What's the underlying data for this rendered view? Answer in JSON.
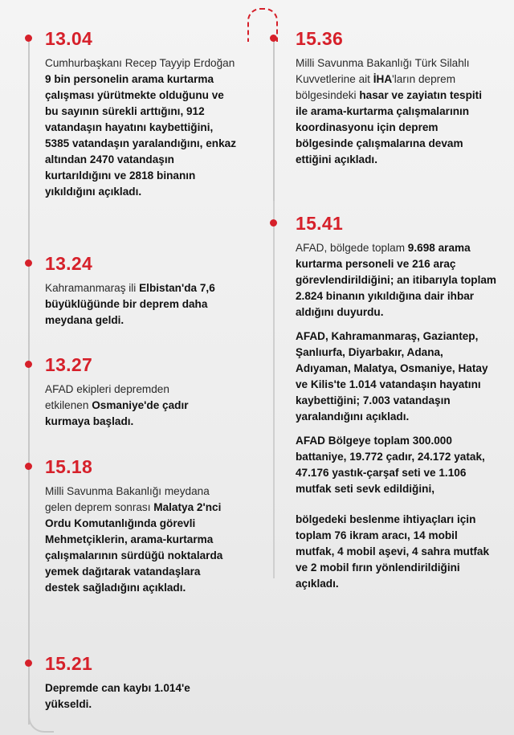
{
  "colors": {
    "accent": "#d6202a",
    "line": "#c8c8c8",
    "text": "#2a2a2a"
  },
  "left": [
    {
      "time": "13.04",
      "runs": [
        {
          "t": "Cumhurbaşkanı Recep Tayyip Erdoğan ",
          "b": false
        },
        {
          "t": "9 bin personelin arama kurtarma çalışması yürütmekte olduğunu ve bu sayının sürekli arttığını, 912 vatandaşın hayatını kaybettiğini, 5385 vatandaşın yaralandığını, enkaz altından 2470 vatandaşın kurtarıldığını ve 2818 binanın yıkıldığını açıkladı.",
          "b": true
        }
      ]
    },
    {
      "time": "13.24",
      "runs": [
        {
          "t": "Kahramanmaraş ili ",
          "b": false
        },
        {
          "t": "Elbistan'da 7,6 büyüklüğünde bir deprem daha meydana geldi.",
          "b": true
        }
      ]
    },
    {
      "time": "13.27",
      "runs": [
        {
          "t": "AFAD ekipleri depremden etkilenen ",
          "b": false
        },
        {
          "t": "Osmaniye'de çadır kurmaya başladı.",
          "b": true
        }
      ]
    },
    {
      "time": "15.18",
      "runs": [
        {
          "t": "Milli Savunma Bakanlığı meydana gelen deprem sonrası ",
          "b": false
        },
        {
          "t": "Malatya 2'nci Ordu Komutanlığında görevli Mehmetçiklerin, arama-kurtarma çalışmalarının sürdüğü noktalarda yemek dağıtarak vatandaşlara destek sağladığını açıkladı.",
          "b": true
        }
      ]
    },
    {
      "time": "15.21",
      "runs": [
        {
          "t": "Depremde can kaybı 1.014'e yükseldi.",
          "b": true
        }
      ]
    }
  ],
  "right": [
    {
      "time": "15.36",
      "runs": [
        {
          "t": "Milli Savunma Bakanlığı Türk Silahlı Kuvvetlerine ait ",
          "b": false
        },
        {
          "t": "İHA",
          "b": true
        },
        {
          "t": "'ların deprem bölgesindeki ",
          "b": false
        },
        {
          "t": "hasar ve zayiatın tespiti ile arama-kurtarma çalışmalarının koordinasyonu için deprem bölgesinde çalışmalarına devam ettiğini açıkladı.",
          "b": true
        }
      ]
    },
    {
      "time": "15.41",
      "paras": [
        [
          {
            "t": "AFAD, bölgede toplam ",
            "b": false
          },
          {
            "t": "9.698 arama kurtarma personeli ve 216 araç görevlendirildiğini; an itibarıyla toplam 2.824 binanın yıkıldığına dair ihbar aldığını duyurdu.",
            "b": true
          }
        ],
        [
          {
            "t": "AFAD, Kahramanmaraş, Gaziantep, Şanlıurfa, Diyarbakır, Adana, Adıyaman, Malatya, Osmaniye, Hatay ve Kilis'te 1.014 vatandaşın hayatını kaybettiğini; 7.003 vatandaşın yaralandığını açıkladı.",
            "b": true
          }
        ],
        [
          {
            "t": "AFAD Bölgeye toplam 300.000 battaniye, 19.772 çadır, 24.172 yatak, 47.176 yastık-çarşaf seti ve 1.106 mutfak seti sevk edildiğini,",
            "b": true
          }
        ],
        [
          {
            "t": "bölgedeki beslenme ihtiyaçları için toplam 76 ikram aracı, 14 mobil mutfak, 4 mobil aşevi, 4 sahra mutfak ve 2 mobil fırın yönlendirildiğini açıkladı.",
            "b": true
          }
        ]
      ]
    }
  ]
}
